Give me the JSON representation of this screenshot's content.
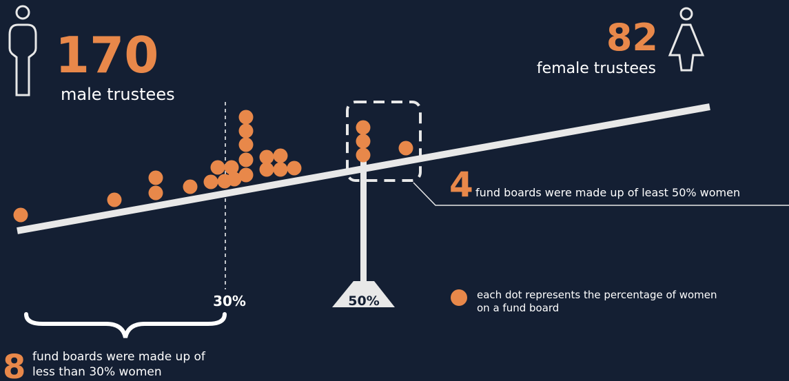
{
  "male": {
    "count": "170",
    "label": "male trustees"
  },
  "female": {
    "count": "82",
    "label": "female trustees"
  },
  "scale": {
    "left_mark": "30%",
    "center_mark": "50%"
  },
  "callout_high": {
    "number": "4",
    "text": "fund boards were made up of least 50% women"
  },
  "callout_low": {
    "number": "8",
    "lines": [
      "fund boards were made up of",
      "less than 30% women"
    ]
  },
  "legend": {
    "lines": [
      "each dot represents the percentage of women",
      "on a fund board"
    ]
  }
}
